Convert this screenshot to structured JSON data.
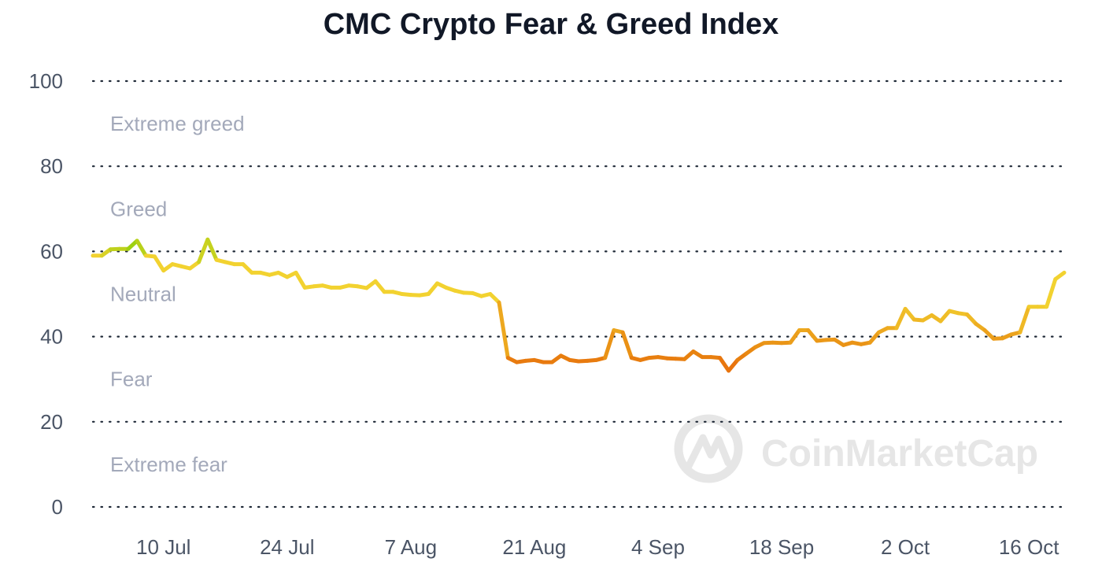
{
  "chart_data": {
    "type": "line",
    "title": "CMC Crypto Fear & Greed Index",
    "xlabel": "",
    "ylabel": "",
    "ylim": [
      0,
      100
    ],
    "y_ticks": [
      "0",
      "20",
      "40",
      "60",
      "80",
      "100"
    ],
    "x_ticks": [
      "10 Jul",
      "24 Jul",
      "7 Aug",
      "21 Aug",
      "4 Sep",
      "18 Sep",
      "2 Oct",
      "16 Oct"
    ],
    "grid": true,
    "zones": [
      "Extreme greed",
      "Greed",
      "Neutral",
      "Fear",
      "Extreme fear"
    ],
    "color_scale": {
      "extreme_fear": "#e8620c",
      "fear": "#e88410",
      "neutral": "#f2d230",
      "greed": "#8fd10a"
    },
    "watermark": "CoinMarketCap",
    "series": [
      {
        "x": [
          "2023-07-02",
          "2023-07-03",
          "2023-07-04",
          "2023-07-05",
          "2023-07-06",
          "2023-07-07",
          "2023-07-08",
          "2023-07-09",
          "2023-07-10",
          "2023-07-11",
          "2023-07-12",
          "2023-07-13",
          "2023-07-14",
          "2023-07-15",
          "2023-07-16",
          "2023-07-17",
          "2023-07-18",
          "2023-07-19",
          "2023-07-20",
          "2023-07-21",
          "2023-07-22",
          "2023-07-23",
          "2023-07-24",
          "2023-07-25",
          "2023-07-26",
          "2023-07-27",
          "2023-07-28",
          "2023-07-29",
          "2023-07-30",
          "2023-07-31",
          "2023-08-01",
          "2023-08-02",
          "2023-08-03",
          "2023-08-04",
          "2023-08-05",
          "2023-08-06",
          "2023-08-07",
          "2023-08-08",
          "2023-08-09",
          "2023-08-10",
          "2023-08-11",
          "2023-08-12",
          "2023-08-13",
          "2023-08-14",
          "2023-08-15",
          "2023-08-16",
          "2023-08-17",
          "2023-08-18",
          "2023-08-19",
          "2023-08-20",
          "2023-08-21",
          "2023-08-22",
          "2023-08-23",
          "2023-08-24",
          "2023-08-25",
          "2023-08-26",
          "2023-08-27",
          "2023-08-28",
          "2023-08-29",
          "2023-08-30",
          "2023-08-31",
          "2023-09-01",
          "2023-09-02",
          "2023-09-03",
          "2023-09-04",
          "2023-09-05",
          "2023-09-06",
          "2023-09-07",
          "2023-09-08",
          "2023-09-09",
          "2023-09-10",
          "2023-09-11",
          "2023-09-12",
          "2023-09-13",
          "2023-09-14",
          "2023-09-15",
          "2023-09-16",
          "2023-09-17",
          "2023-09-18",
          "2023-09-19",
          "2023-09-20",
          "2023-09-21",
          "2023-09-22",
          "2023-09-23",
          "2023-09-24",
          "2023-09-25",
          "2023-09-26",
          "2023-09-27",
          "2023-09-28",
          "2023-09-29",
          "2023-09-30",
          "2023-10-01",
          "2023-10-02",
          "2023-10-03",
          "2023-10-04",
          "2023-10-05",
          "2023-10-06",
          "2023-10-07",
          "2023-10-08",
          "2023-10-09",
          "2023-10-10",
          "2023-10-11",
          "2023-10-12",
          "2023-10-13",
          "2023-10-14",
          "2023-10-15",
          "2023-10-16",
          "2023-10-17",
          "2023-10-18",
          "2023-10-19",
          "2023-10-20"
        ],
        "values": [
          59,
          59,
          60.5,
          60.6,
          60.6,
          62.5,
          59,
          58.8,
          55.5,
          57,
          56.5,
          56,
          57.5,
          62.8,
          58,
          57.5,
          57,
          57,
          55,
          55,
          54.5,
          55,
          54,
          55,
          51.5,
          51.8,
          52,
          51.5,
          51.5,
          52,
          51.8,
          51.4,
          53,
          50.5,
          50.5,
          50,
          49.8,
          49.7,
          50,
          52.5,
          51.5,
          50.8,
          50.3,
          50.2,
          49.5,
          50,
          48,
          35,
          34,
          34.3,
          34.5,
          34,
          34,
          35.5,
          34.5,
          34.2,
          34.3,
          34.5,
          35,
          41.5,
          41,
          35,
          34.5,
          35,
          35.2,
          34.9,
          34.8,
          34.7,
          36.5,
          35.2,
          35.2,
          35,
          32,
          34.5,
          36,
          37.5,
          38.5,
          38.6,
          38.5,
          38.6,
          41.5,
          41.5,
          39,
          39.2,
          39.3,
          38,
          38.6,
          38.2,
          38.6,
          41,
          42,
          42,
          46.5,
          44,
          43.8,
          45,
          43.6,
          46,
          45.5,
          45.2,
          43,
          41.5,
          39.5,
          39.6,
          40.5,
          41,
          47,
          47,
          47,
          53.5,
          55
        ]
      }
    ]
  }
}
